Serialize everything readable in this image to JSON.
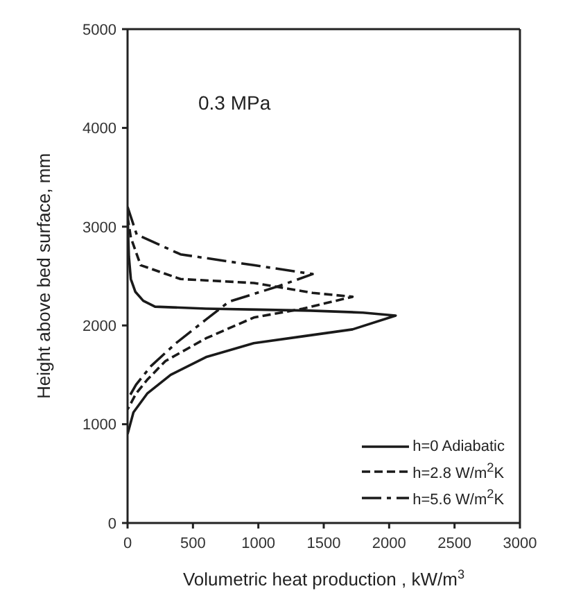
{
  "chart_data": {
    "type": "line",
    "xlabel": "Volumetric heat production , kW/m$^{3}$",
    "ylabel": "Height above bed surface,  mm",
    "annotations": [
      "0.3 MPa"
    ],
    "xlim": [
      0,
      3000
    ],
    "ylim": [
      0,
      5000
    ],
    "xticks": [
      0,
      500,
      1000,
      1500,
      2000,
      2500,
      3000
    ],
    "yticks": [
      0,
      1000,
      2000,
      3000,
      4000,
      5000
    ],
    "grid": false,
    "legend": "bottom right",
    "marker": "none",
    "series": [
      {
        "name": "h=0 Adiabatic",
        "color": "#1a1a1a",
        "line_style": "solid",
        "x": [
          0,
          5,
          10,
          25,
          60,
          120,
          210,
          600,
          1000,
          1400,
          1800,
          2050,
          1720,
          1340,
          965,
          600,
          330,
          150,
          45,
          0
        ],
        "values": [
          3200,
          2900,
          2700,
          2470,
          2340,
          2250,
          2190,
          2170,
          2160,
          2150,
          2130,
          2100,
          1960,
          1890,
          1820,
          1680,
          1500,
          1310,
          1120,
          900
        ]
      },
      {
        "name": "h=2.8 W/m$^{2}$K",
        "color": "#1a1a1a",
        "line_style": "dashed",
        "x": [
          0,
          25,
          100,
          405,
          965,
          1415,
          1720,
          1340,
          965,
          600,
          290,
          150,
          65,
          0
        ],
        "values": [
          3100,
          2890,
          2610,
          2470,
          2430,
          2330,
          2290,
          2170,
          2080,
          1870,
          1640,
          1450,
          1310,
          1150
        ]
      },
      {
        "name": "h=5.6 W/m$^{2}$K",
        "color": "#1a1a1a",
        "line_style": "dashdot",
        "x": [
          0,
          70,
          405,
          965,
          1415,
          1160,
          775,
          600,
          370,
          180,
          65,
          0
        ],
        "values": [
          3200,
          2920,
          2720,
          2610,
          2520,
          2400,
          2240,
          2060,
          1820,
          1590,
          1400,
          1250
        ]
      }
    ]
  }
}
